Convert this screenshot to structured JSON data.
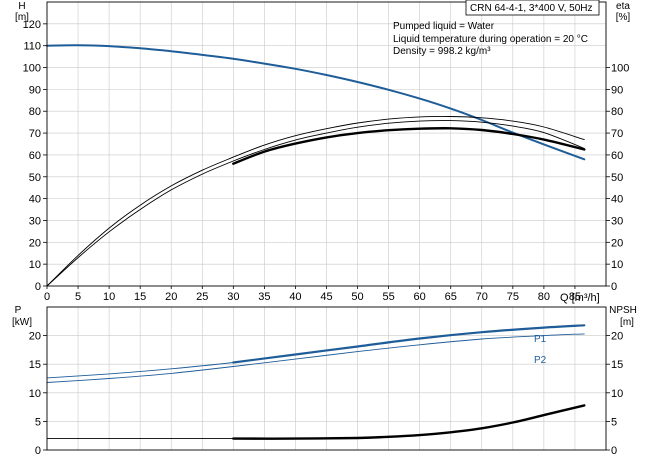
{
  "chart_data": [
    {
      "type": "line",
      "title": "CRN 64-4-1, 3*400 V, 50Hz",
      "annotations": [
        "Pumped liquid = Water",
        "Liquid temperature during operation = 20 °C",
        "Density = 998.2 kg/m³"
      ],
      "xlabel": "Q [m³/h]",
      "xlim": [
        0,
        90
      ],
      "xticks": [
        "0",
        "5",
        "10",
        "15",
        "20",
        "25",
        "30",
        "35",
        "40",
        "45",
        "50",
        "55",
        "60",
        "65",
        "70",
        "75",
        "80",
        "85"
      ],
      "left_axis": {
        "label_top": "H",
        "label_unit": "[m]",
        "ylim": [
          0,
          130
        ],
        "ticks": [
          "0",
          "10",
          "20",
          "30",
          "40",
          "50",
          "60",
          "70",
          "80",
          "90",
          "100",
          "110",
          "120"
        ]
      },
      "right_axis": {
        "label_top": "eta",
        "label_unit": "[%]",
        "ylim": [
          0,
          130
        ],
        "ticks": [
          "0",
          "10",
          "20",
          "30",
          "40",
          "50",
          "60",
          "70",
          "80",
          "90",
          "100"
        ]
      },
      "grid": true,
      "series": [
        {
          "color": "#1f5d99",
          "width": 2,
          "axis": "left",
          "x": [
            0,
            5,
            10,
            15,
            20,
            25,
            30,
            35,
            40,
            45,
            50,
            55,
            60,
            65,
            70,
            75,
            80,
            86.5
          ],
          "y": [
            110,
            110.2,
            109.8,
            108.8,
            107.5,
            105.8,
            104,
            101.8,
            99.4,
            96.6,
            93.4,
            89.8,
            85.8,
            81.2,
            76,
            70.2,
            64.8,
            58
          ]
        },
        {
          "color": "#000000",
          "width": 0.9,
          "axis": "right",
          "x": [
            0,
            5,
            10,
            15,
            20,
            25,
            30,
            35,
            40,
            45,
            50,
            55,
            60,
            65,
            70,
            75,
            80,
            86.5
          ],
          "y": [
            0,
            14,
            26.5,
            37,
            45.8,
            53,
            59,
            64.5,
            68.8,
            72,
            74.6,
            76.4,
            77.4,
            77.6,
            77,
            75.5,
            72.8,
            67
          ]
        },
        {
          "color": "#000000",
          "width": 0.9,
          "axis": "right",
          "x": [
            0,
            5,
            10,
            15,
            20,
            25,
            30,
            35,
            40,
            45,
            50,
            55,
            60,
            65,
            70,
            75,
            80,
            86.5
          ],
          "y": [
            0,
            13,
            24.8,
            35,
            44,
            51.2,
            57.2,
            62.5,
            66.8,
            70,
            72.7,
            74.5,
            75.5,
            75.7,
            75,
            73.2,
            70.2,
            63
          ]
        },
        {
          "color": "#000000",
          "width": 2.4,
          "axis": "right",
          "x": [
            30,
            35,
            40,
            45,
            50,
            55,
            60,
            65,
            70,
            75,
            80,
            86.5
          ],
          "y": [
            56,
            61.5,
            65.2,
            68,
            70,
            71.3,
            72,
            72.2,
            71.4,
            69.6,
            67,
            62.5
          ]
        }
      ]
    },
    {
      "type": "line",
      "xlim": [
        0,
        90
      ],
      "left_axis": {
        "label_top": "P",
        "label_unit": "[kW]",
        "ylim": [
          0,
          25
        ],
        "ticks": [
          "0",
          "5",
          "10",
          "15",
          "20"
        ]
      },
      "right_axis": {
        "label_top": "NPSH",
        "label_unit": "[m]",
        "ylim": [
          0,
          25
        ],
        "ticks": [
          "0",
          "5",
          "10",
          "15",
          "20"
        ]
      },
      "grid": true,
      "series": [
        {
          "name": "P1",
          "color": "#1f5d99",
          "width": 0.9,
          "axis": "left",
          "x": [
            0,
            10,
            20,
            30,
            40,
            50,
            60,
            70,
            80,
            86.5
          ],
          "y": [
            12.6,
            13.3,
            14.2,
            15.3,
            16.7,
            18.1,
            19.5,
            20.6,
            21.4,
            21.8
          ]
        },
        {
          "color": "#1f5d99",
          "width": 2.2,
          "axis": "left",
          "x": [
            30,
            40,
            50,
            60,
            70,
            80,
            86.5
          ],
          "y": [
            15.3,
            16.7,
            18.1,
            19.5,
            20.6,
            21.4,
            21.8
          ]
        },
        {
          "name": "P2",
          "color": "#1f5d99",
          "width": 0.9,
          "axis": "left",
          "x": [
            0,
            10,
            20,
            30,
            40,
            50,
            60,
            70,
            80,
            86.5
          ],
          "y": [
            11.8,
            12.5,
            13.4,
            14.6,
            15.9,
            17.2,
            18.4,
            19.4,
            20,
            20.3
          ]
        },
        {
          "color": "#000000",
          "width": 0.9,
          "axis": "right",
          "x": [
            0,
            30
          ],
          "y": [
            2,
            2
          ]
        },
        {
          "color": "#000000",
          "width": 2.4,
          "axis": "right",
          "x": [
            30,
            40,
            50,
            55,
            60,
            65,
            70,
            75,
            80,
            86.5
          ],
          "y": [
            2,
            2,
            2.1,
            2.3,
            2.6,
            3.1,
            3.8,
            4.8,
            6.1,
            7.8
          ]
        }
      ]
    }
  ]
}
